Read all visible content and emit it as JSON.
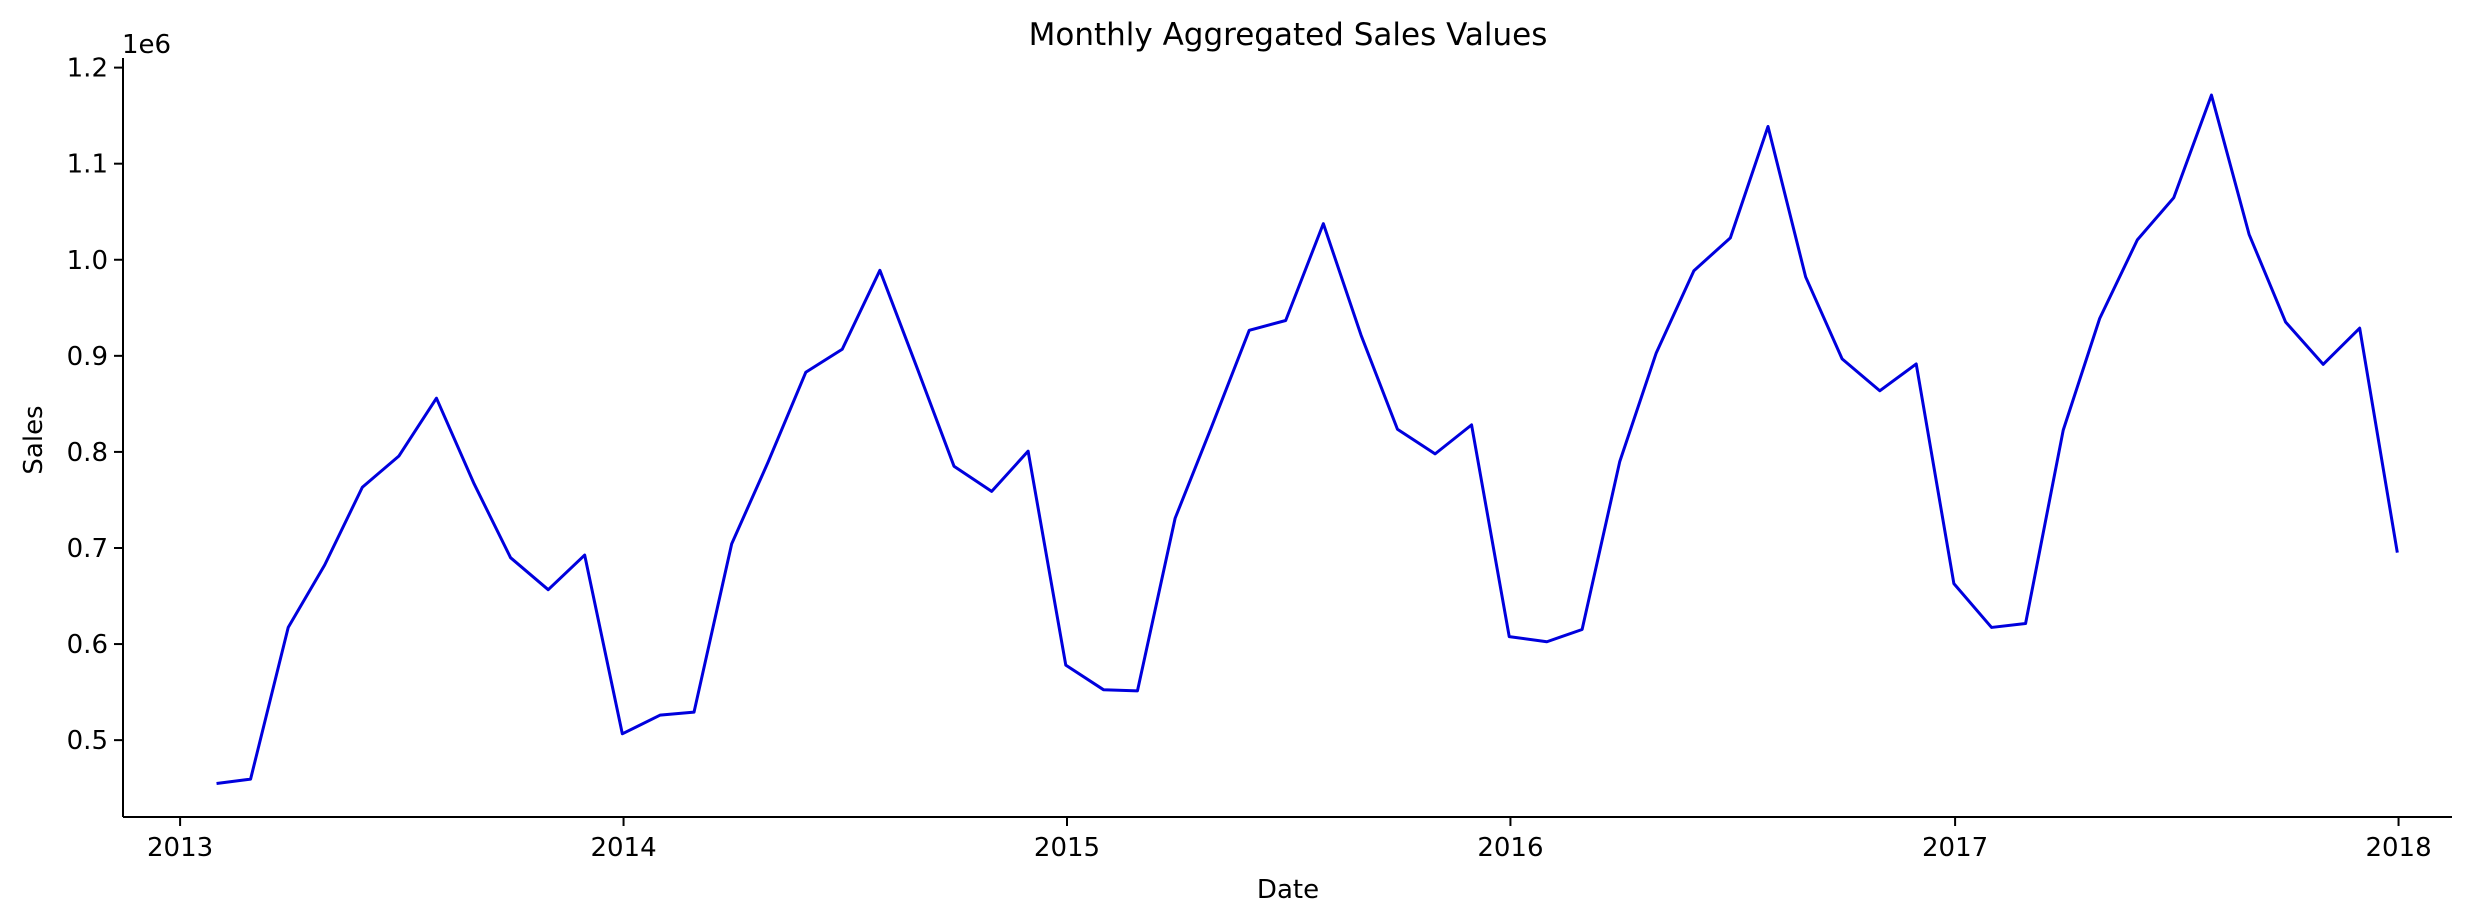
{
  "chart_data": {
    "type": "line",
    "title": "Monthly Aggregated Sales Values",
    "xlabel": "Date",
    "ylabel": "Sales",
    "y_offset_label": "1e6",
    "x_tick_labels": [
      "2013",
      "2014",
      "2015",
      "2016",
      "2017",
      "2018"
    ],
    "y_tick_labels": [
      "0.5",
      "0.6",
      "0.7",
      "0.8",
      "0.9",
      "1.0",
      "1.1",
      "1.2"
    ],
    "y_tick_values": [
      500000,
      600000,
      700000,
      800000,
      900000,
      1000000,
      1100000,
      1200000
    ],
    "xlim": [
      "2012-11-15",
      "2018-02-14"
    ],
    "ylim": [
      420000,
      1210000
    ],
    "grid": false,
    "line_color": "#0000dd",
    "series": [
      {
        "x": [
          "2013-01-31",
          "2013-02-28",
          "2013-03-31",
          "2013-04-30",
          "2013-05-31",
          "2013-06-30",
          "2013-07-31",
          "2013-08-31",
          "2013-09-30",
          "2013-10-31",
          "2013-11-30",
          "2013-12-31",
          "2014-01-31",
          "2014-02-28",
          "2014-03-31",
          "2014-04-30",
          "2014-05-31",
          "2014-06-30",
          "2014-07-31",
          "2014-08-31",
          "2014-09-30",
          "2014-10-31",
          "2014-11-30",
          "2014-12-31",
          "2015-01-31",
          "2015-02-28",
          "2015-03-31",
          "2015-04-30",
          "2015-05-31",
          "2015-06-30",
          "2015-07-31",
          "2015-08-31",
          "2015-09-30",
          "2015-10-31",
          "2015-11-30",
          "2015-12-31",
          "2016-01-31",
          "2016-02-29",
          "2016-03-31",
          "2016-04-30",
          "2016-05-31",
          "2016-06-30",
          "2016-07-31",
          "2016-08-31",
          "2016-09-30",
          "2016-10-31",
          "2016-11-30",
          "2016-12-31",
          "2017-01-31",
          "2017-02-28",
          "2017-03-31",
          "2017-04-30",
          "2017-05-31",
          "2017-06-30",
          "2017-07-31",
          "2017-08-31",
          "2017-09-30",
          "2017-10-31",
          "2017-11-30",
          "2017-12-31"
        ],
        "values": [
          454904,
          459417,
          617382,
          682274,
          763242,
          795597,
          855922,
          766761,
          689907,
          656587,
          692643,
          506607,
          525987,
          529117,
          704301,
          789480,
          882877,
          906842,
          989010,
          886101,
          785124,
          758883,
          800783,
          578048,
          552513,
          551317,
          730951,
          826126,
          926614,
          936791,
          1037600,
          921654,
          823599,
          797948,
          828150,
          607792,
          602424,
          615183,
          790038,
          903013,
          988593,
          1022788,
          1138720,
          982119,
          896812,
          863628,
          891530,
          662941,
          617306,
          621369,
          822667,
          938862,
          1020686,
          1064624,
          1171393,
          1026403,
          935263,
          891160,
          928837,
          695170
        ]
      }
    ]
  }
}
